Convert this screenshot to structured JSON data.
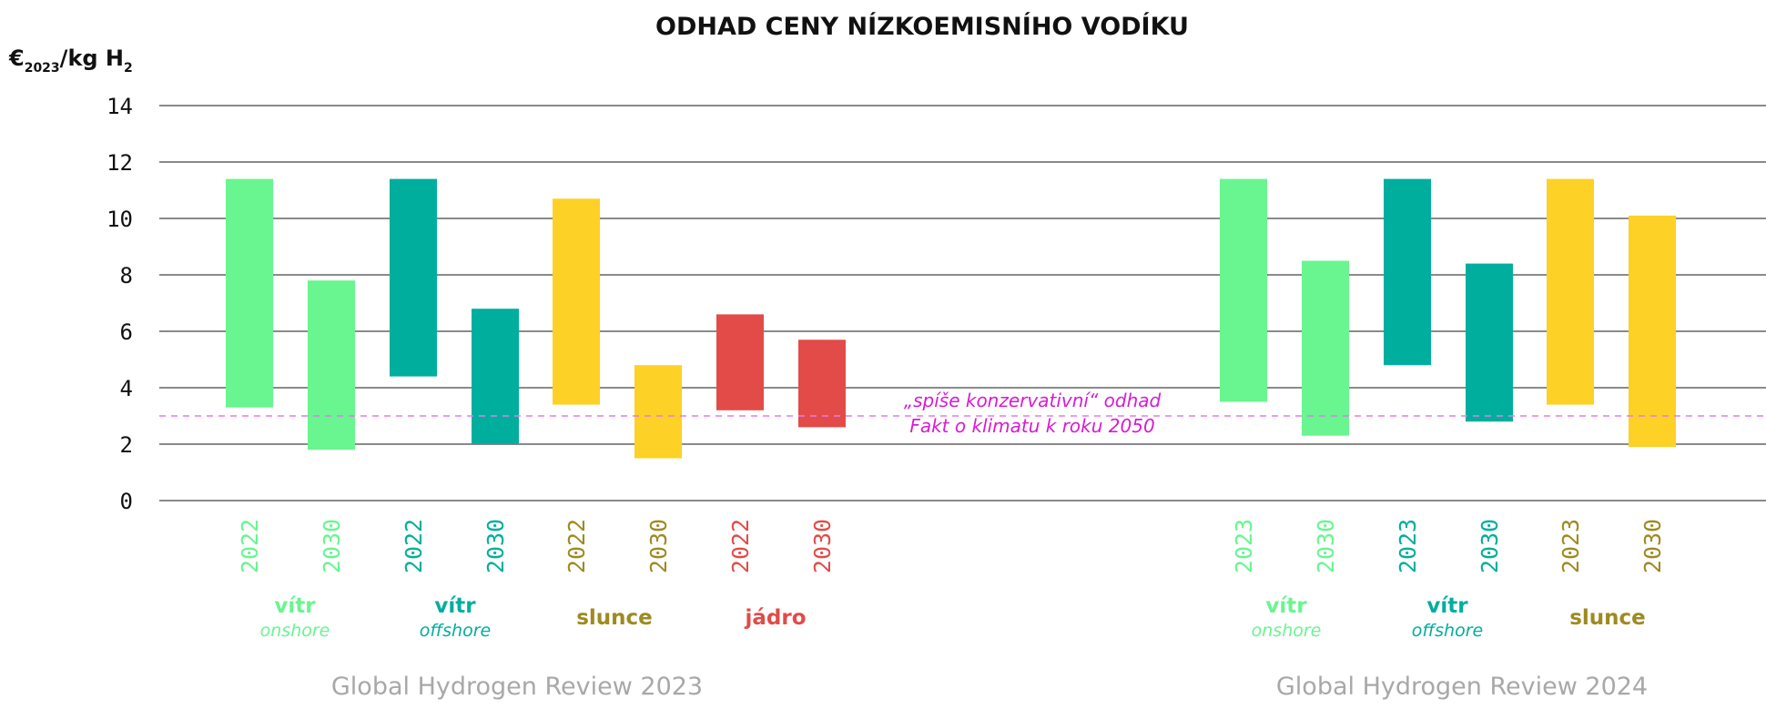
{
  "chart_data": {
    "type": "bar",
    "title": "ODHAD CENY NÍZKOEMISNÍHO VODÍKU",
    "ylabel": {
      "currency": "€",
      "year": "2023",
      "unit": "/kg H",
      "sub": "2"
    },
    "ylim": [
      0,
      14
    ],
    "yticks": [
      0,
      2,
      4,
      6,
      8,
      10,
      12,
      14
    ],
    "grid": true,
    "reference_line": {
      "value": 3,
      "color": "#e57be9",
      "label_line1": "„spíše konzervativní“ odhad",
      "label_line2": "Fakt o klimatu k roku 2050",
      "label_color": "#d81bd2"
    },
    "colors": {
      "onshore": "#69f590",
      "offshore": "#00ae9e",
      "solar": "#fdd126",
      "nuclear": "#e24b48",
      "solar_text": "#9e8a1f",
      "review_text": "#a8a8a8"
    },
    "bars": [
      {
        "year": "2022",
        "low": 3.3,
        "high": 11.4,
        "color": "#69f590",
        "text_color": "#69f590"
      },
      {
        "year": "2030",
        "low": 1.8,
        "high": 7.8,
        "color": "#69f590",
        "text_color": "#69f590"
      },
      {
        "year": "2022",
        "low": 4.4,
        "high": 11.4,
        "color": "#00ae9e",
        "text_color": "#00ae9e"
      },
      {
        "year": "2030",
        "low": 2.0,
        "high": 6.8,
        "color": "#00ae9e",
        "text_color": "#00ae9e"
      },
      {
        "year": "2022",
        "low": 3.4,
        "high": 10.7,
        "color": "#fdd126",
        "text_color": "#9e8a1f"
      },
      {
        "year": "2030",
        "low": 1.5,
        "high": 4.8,
        "color": "#fdd126",
        "text_color": "#9e8a1f"
      },
      {
        "year": "2022",
        "low": 3.2,
        "high": 6.6,
        "color": "#e24b48",
        "text_color": "#e24b48"
      },
      {
        "year": "2030",
        "low": 2.6,
        "high": 5.7,
        "color": "#e24b48",
        "text_color": "#e24b48"
      },
      {
        "year": "2023",
        "low": 3.5,
        "high": 11.4,
        "color": "#69f590",
        "text_color": "#69f590"
      },
      {
        "year": "2030",
        "low": 2.3,
        "high": 8.5,
        "color": "#69f590",
        "text_color": "#69f590"
      },
      {
        "year": "2023",
        "low": 4.8,
        "high": 11.4,
        "color": "#00ae9e",
        "text_color": "#00ae9e"
      },
      {
        "year": "2030",
        "low": 2.8,
        "high": 8.4,
        "color": "#00ae9e",
        "text_color": "#00ae9e"
      },
      {
        "year": "2023",
        "low": 3.4,
        "high": 11.4,
        "color": "#fdd126",
        "text_color": "#9e8a1f"
      },
      {
        "year": "2030",
        "low": 1.9,
        "high": 10.1,
        "color": "#fdd126",
        "text_color": "#9e8a1f"
      }
    ],
    "groups": [
      {
        "label": "vítr",
        "sublabel": "onshore",
        "color": "#69f590"
      },
      {
        "label": "vítr",
        "sublabel": "offshore",
        "color": "#00ae9e"
      },
      {
        "label": "slunce",
        "sublabel": "",
        "color": "#9e8a1f"
      },
      {
        "label": "jádro",
        "sublabel": "",
        "color": "#e24b48"
      },
      {
        "label": "vítr",
        "sublabel": "onshore",
        "color": "#69f590"
      },
      {
        "label": "vítr",
        "sublabel": "offshore",
        "color": "#00ae9e"
      },
      {
        "label": "slunce",
        "sublabel": "",
        "color": "#9e8a1f"
      }
    ],
    "sources": [
      "Global Hydrogen Review 2023",
      "Global Hydrogen Review 2024"
    ]
  }
}
